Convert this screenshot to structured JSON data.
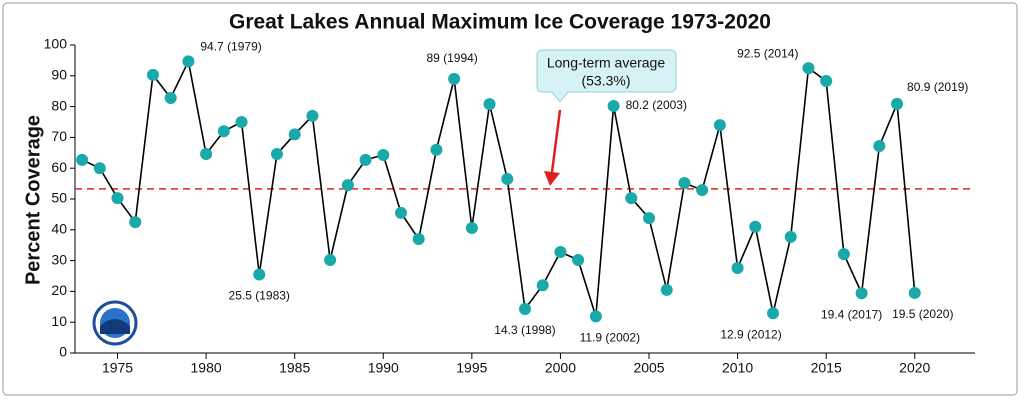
{
  "chart_data": {
    "type": "line",
    "title": "Great Lakes Annual Maximum Ice Coverage 1973-2020",
    "y_label": "Percent Coverage",
    "x": [
      1973,
      1974,
      1975,
      1976,
      1977,
      1978,
      1979,
      1980,
      1981,
      1982,
      1983,
      1984,
      1985,
      1986,
      1987,
      1988,
      1989,
      1990,
      1991,
      1992,
      1993,
      1994,
      1995,
      1996,
      1997,
      1998,
      1999,
      2000,
      2001,
      2002,
      2003,
      2004,
      2005,
      2006,
      2007,
      2008,
      2009,
      2010,
      2011,
      2012,
      2013,
      2014,
      2015,
      2016,
      2017,
      2018,
      2019,
      2020
    ],
    "series": [
      {
        "name": "Maximum ice coverage",
        "color": "#1aa9a9",
        "line_color": "#000000",
        "values": [
          62.7,
          60,
          50.3,
          42.5,
          90.3,
          82.8,
          94.7,
          64.6,
          72,
          75,
          25.5,
          64.6,
          71,
          77,
          30.2,
          54.5,
          62.7,
          64.3,
          45.5,
          37,
          66,
          89,
          40.6,
          80.8,
          56.5,
          14.3,
          22,
          32.8,
          30.2,
          11.9,
          80.2,
          50.3,
          43.8,
          20.5,
          55.2,
          52.9,
          74,
          27.6,
          41,
          12.9,
          37.7,
          92.5,
          88.3,
          32.1,
          19.4,
          67.2,
          80.9,
          19.5
        ],
        "value_labels": [
          null,
          null,
          null,
          null,
          null,
          null,
          "94.7 (1979)",
          null,
          null,
          null,
          "25.5 (1983)",
          null,
          null,
          null,
          null,
          null,
          null,
          null,
          null,
          null,
          null,
          "89 (1994)",
          null,
          null,
          null,
          "14.3 (1998)",
          null,
          null,
          null,
          "11.9 (2002)",
          "80.2 (2003)",
          null,
          null,
          null,
          null,
          null,
          null,
          null,
          null,
          "12.9 (2012)",
          null,
          "92.5 (2014)",
          null,
          null,
          "19.4 (2017)",
          null,
          "80.9 (2019)",
          "19.5 (2020)"
        ]
      }
    ],
    "average": {
      "value": 53.3,
      "label": "Long-term average",
      "value_label": "(53.3%)",
      "color": "#e02020"
    },
    "xlim": [
      1972.6,
      2023.4
    ],
    "xticks": [
      1975,
      1980,
      1985,
      1990,
      1995,
      2000,
      2005,
      2010,
      2015,
      2020
    ],
    "ylim": [
      0,
      100
    ],
    "yticks": [
      0,
      10,
      20,
      30,
      40,
      50,
      60,
      70,
      80,
      90,
      100
    ],
    "grid": false
  }
}
